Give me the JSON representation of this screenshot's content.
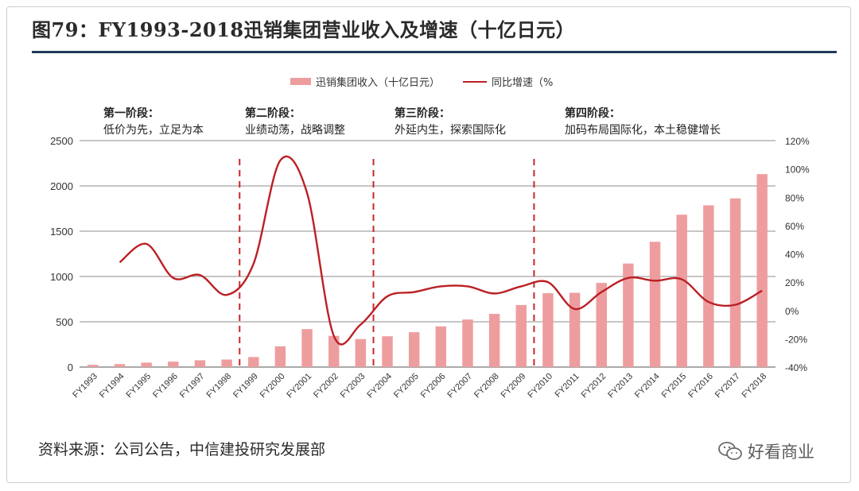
{
  "header": {
    "title": "图79：FY1993-2018迅销集团营业收入及增速（十亿日元）"
  },
  "legend": {
    "bar_label": "迅销集团收入（十亿日元）",
    "line_label": "同比增速（%"
  },
  "stages": [
    {
      "name": "第一阶段：",
      "desc": "低价为先，立足为本"
    },
    {
      "name": "第二阶段：",
      "desc": "业绩动荡，战略调整"
    },
    {
      "name": "第三阶段：",
      "desc": "外延内生，探索国际化"
    },
    {
      "name": "第四阶段：",
      "desc": "加码布局国际化，本土稳健增长"
    }
  ],
  "footer": {
    "source": "资料来源：公司公告，中信建投研究发展部",
    "watermark": "好看商业"
  },
  "chart_data": {
    "type": "bar",
    "categories": [
      "FY1993",
      "FY1994",
      "FY1995",
      "FY1996",
      "FY1997",
      "FY1998",
      "FY1999",
      "FY2000",
      "FY2001",
      "FY2002",
      "FY2003",
      "FY2004",
      "FY2005",
      "FY2006",
      "FY2007",
      "FY2008",
      "FY2009",
      "FY2010",
      "FY2011",
      "FY2012",
      "FY2013",
      "FY2014",
      "FY2015",
      "FY2016",
      "FY2017",
      "FY2018"
    ],
    "series": [
      {
        "name": "迅销集团收入（十亿日元）",
        "type": "bar",
        "axis": "left",
        "color": "#ee9d9f",
        "values": [
          25,
          33,
          49,
          60,
          75,
          83,
          111,
          229,
          419,
          345,
          309,
          340,
          385,
          449,
          525,
          587,
          685,
          815,
          820,
          929,
          1143,
          1383,
          1682,
          1786,
          1862,
          2130
        ]
      },
      {
        "name": "同比增速（%",
        "type": "line",
        "axis": "right",
        "color": "#bb2025",
        "values": [
          null,
          34,
          47,
          23,
          25,
          11,
          33,
          106,
          83,
          -18,
          -10,
          10,
          13,
          17,
          17,
          12,
          17,
          20,
          1,
          13,
          23,
          21,
          22,
          6,
          4,
          14
        ]
      }
    ],
    "y_left": {
      "min": 0,
      "max": 2500,
      "ticks": [
        0,
        500,
        1000,
        1500,
        2000,
        2500
      ]
    },
    "y_right": {
      "min": -40,
      "max": 120,
      "ticks": [
        "-40%",
        "-20%",
        "0%",
        "20%",
        "40%",
        "60%",
        "80%",
        "100%",
        "120%"
      ]
    },
    "stage_dividers_after": [
      "FY1998",
      "FY2003",
      "FY2009"
    ],
    "grid": true,
    "legend_position": "top-center"
  }
}
